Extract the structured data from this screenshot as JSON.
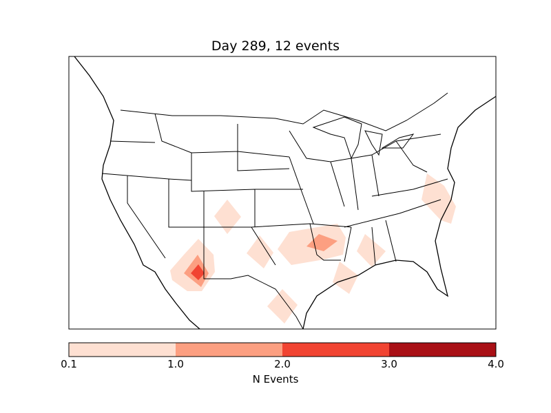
{
  "title": "Day 289, 12 events",
  "colorbar": {
    "label": "N Events",
    "ticks": [
      "0.1",
      "1.0",
      "2.0",
      "3.0",
      "4.0"
    ],
    "colors": [
      "#fee0d2",
      "#fc9f81",
      "#f14432",
      "#a91016"
    ]
  },
  "chart_data": {
    "type": "heatmap",
    "title": "Day 289, 12 events",
    "levels": [
      0.1,
      1.0,
      2.0,
      3.0,
      4.0
    ],
    "colorbar_label": "N Events",
    "event_regions": [
      {
        "region": "Colorado/New Mexico border",
        "max_level": 1
      },
      {
        "region": "Southern Arizona",
        "max_level": 3
      },
      {
        "region": "Eastern New Mexico / West Texas",
        "max_level": 1
      },
      {
        "region": "Oklahoma / Arkansas",
        "max_level": 2
      },
      {
        "region": "Louisiana",
        "max_level": 1
      },
      {
        "region": "South Texas / Mexico",
        "max_level": 1
      },
      {
        "region": "Mississippi / Alabama",
        "max_level": 1
      },
      {
        "region": "North Carolina / Virginia",
        "max_level": 1
      }
    ]
  }
}
